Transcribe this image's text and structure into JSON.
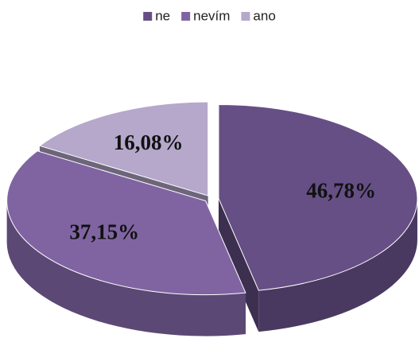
{
  "chart_data": {
    "type": "pie",
    "categories": [
      "ne",
      "nevím",
      "ano"
    ],
    "values": [
      46.78,
      37.15,
      16.08
    ],
    "value_labels": [
      "46,78%",
      "37,15%",
      "16,08%"
    ],
    "colors": [
      "#664f85",
      "#8064a2",
      "#b5a8cb"
    ],
    "legend": "top"
  }
}
